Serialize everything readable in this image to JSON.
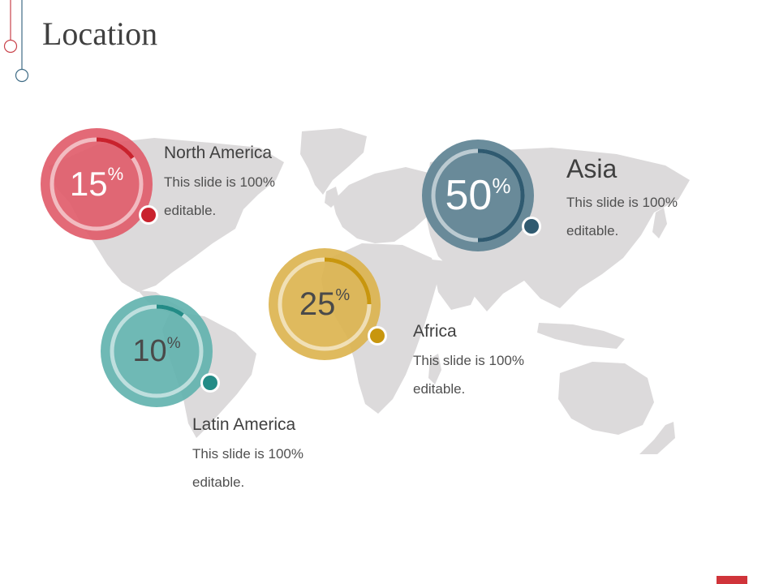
{
  "slide": {
    "title": "Location"
  },
  "colors": {
    "north_america": "#e05a68",
    "latin_america": "#5fb1ad",
    "africa": "#dbb24d",
    "asia": "#5e8394",
    "map": "#dcdadb",
    "accent_red": "#d0343a"
  },
  "regions": [
    {
      "key": "north_america",
      "value": 15,
      "number": "15",
      "percent_sign": "%",
      "name": "North America",
      "description": "This slide is 100% editable."
    },
    {
      "key": "asia",
      "value": 50,
      "number": "50",
      "percent_sign": "%",
      "name": "Asia",
      "description": "This slide is 100% editable."
    },
    {
      "key": "africa",
      "value": 25,
      "number": "25",
      "percent_sign": "%",
      "name": "Africa",
      "description": "This slide is 100% editable."
    },
    {
      "key": "latin_america",
      "value": 10,
      "number": "10",
      "percent_sign": "%",
      "name": "Latin America",
      "description": "This slide is 100% editable."
    }
  ]
}
